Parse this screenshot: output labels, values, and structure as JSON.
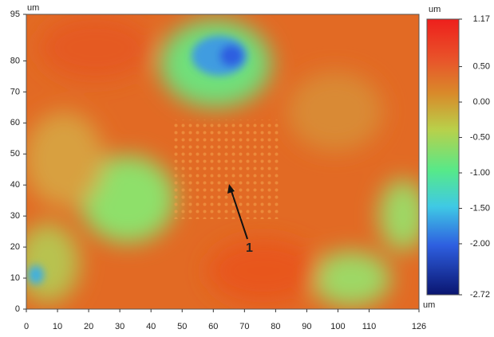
{
  "chart_data": {
    "type": "image",
    "x_unit": "um",
    "y_unit": "um",
    "color_unit": "um",
    "xlim": [
      0,
      126
    ],
    "xticks": [
      0,
      10,
      20,
      30,
      40,
      50,
      60,
      70,
      80,
      90,
      100,
      110,
      126
    ],
    "ylim": [
      0,
      95
    ],
    "yticks": [
      0,
      10,
      20,
      30,
      40,
      50,
      60,
      70,
      80,
      95
    ],
    "clim": [
      -2.72,
      1.17
    ],
    "cticks": [
      1.17,
      {
        "value": 0.5,
        "label": "0.50"
      },
      {
        "value": 0,
        "label": "0.00"
      },
      {
        "value": -0.5,
        "label": "-0.50"
      },
      {
        "value": -1,
        "label": "-1.00"
      },
      {
        "value": -1.5,
        "label": "-1.50"
      },
      {
        "value": -2,
        "label": "-2.00"
      },
      -2.72
    ],
    "annotation": "1"
  }
}
